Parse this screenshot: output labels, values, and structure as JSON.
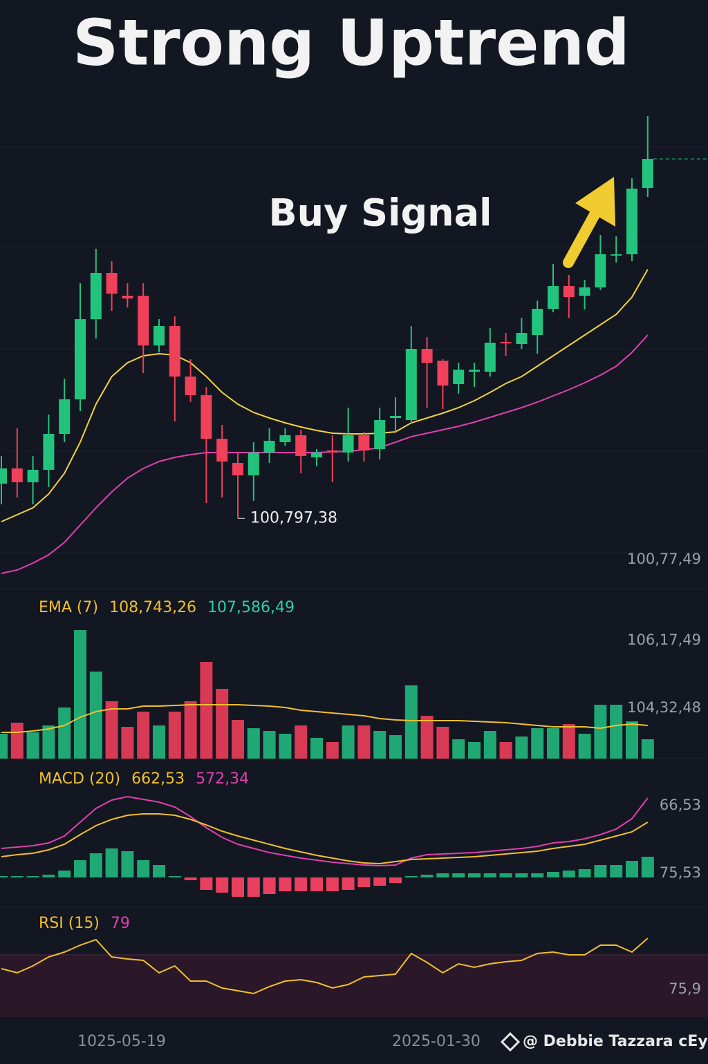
{
  "title": "Strong Uptrend",
  "annotation": "Buy Signal",
  "credit": "@ Debbie Tazzara cEyu",
  "dates": [
    "1025-05-19",
    "2025-01-30"
  ],
  "right_labels": [
    "100,77,49",
    "106,17,49",
    "104,32,48",
    "66,53",
    "75,53",
    "75,9"
  ],
  "chart_data": [
    {
      "type": "candlestick",
      "ylim": [
        100000,
        107000
      ],
      "up_color": "#22c47d",
      "down_color": "#f0405a",
      "grid_lines": [
        106180,
        104720,
        103240,
        101780,
        100300
      ],
      "low_label": "100,797,38",
      "open": [
        101300,
        101520,
        101320,
        101500,
        102020,
        102520,
        103680,
        104350,
        104020,
        104020,
        103300,
        103580,
        102850,
        102580,
        101950,
        101600,
        101420,
        101750,
        101900,
        102000,
        101680,
        101780,
        101750,
        102000,
        101800,
        102250,
        102220,
        103250,
        103080,
        102740,
        102920,
        102920,
        103350,
        103320,
        103450,
        103830,
        104160,
        104020,
        104140,
        104600,
        104620,
        105580
      ],
      "close": [
        101520,
        101320,
        101500,
        102020,
        102520,
        103680,
        104350,
        104050,
        103980,
        103300,
        103580,
        102850,
        102580,
        101950,
        101620,
        101420,
        101750,
        101920,
        102000,
        101700,
        101750,
        101750,
        102000,
        101780,
        102220,
        102280,
        103250,
        103050,
        102720,
        102950,
        102950,
        103340,
        103330,
        103480,
        103830,
        104160,
        104000,
        104140,
        104620,
        104620,
        105570,
        106000
      ],
      "high": [
        101700,
        102100,
        101700,
        102300,
        102820,
        104200,
        104700,
        104520,
        104200,
        104200,
        103680,
        103720,
        103100,
        102700,
        102150,
        101750,
        101900,
        102100,
        102100,
        102080,
        101800,
        102000,
        102400,
        102050,
        102400,
        102550,
        103580,
        103420,
        103100,
        103050,
        103050,
        103550,
        103480,
        103700,
        103950,
        104480,
        104320,
        104250,
        104900,
        104880,
        105720,
        106620
      ],
      "low": [
        101000,
        101100,
        101000,
        101250,
        101900,
        102350,
        103400,
        103800,
        103850,
        102900,
        103200,
        102200,
        102480,
        101020,
        101100,
        100797.38,
        101050,
        101600,
        101850,
        101450,
        101550,
        101320,
        101620,
        101620,
        101650,
        102050,
        102180,
        102400,
        102380,
        102600,
        102700,
        102850,
        103150,
        103250,
        103180,
        103780,
        103700,
        103820,
        104100,
        104500,
        104520,
        105450
      ],
      "series": [
        {
          "color": "#f2d43c",
          "values": [
            100750,
            100850,
            100950,
            101150,
            101450,
            101900,
            102450,
            102850,
            103050,
            103150,
            103180,
            103160,
            103050,
            102850,
            102620,
            102450,
            102330,
            102250,
            102180,
            102120,
            102070,
            102030,
            102020,
            102020,
            102030,
            102050,
            102180,
            102250,
            102320,
            102400,
            102500,
            102620,
            102750,
            102850,
            103000,
            103150,
            103300,
            103450,
            103600,
            103750,
            104000,
            104400
          ]
        },
        {
          "color": "#e040b0",
          "values": [
            100000,
            100050,
            100150,
            100270,
            100450,
            100700,
            100950,
            101180,
            101380,
            101520,
            101620,
            101680,
            101720,
            101750,
            101750,
            101750,
            101750,
            101750,
            101750,
            101750,
            101750,
            101760,
            101770,
            101790,
            101820,
            101900,
            101980,
            102030,
            102080,
            102130,
            102190,
            102260,
            102330,
            102400,
            102480,
            102570,
            102660,
            102760,
            102870,
            103000,
            103200,
            103450
          ]
        }
      ]
    },
    {
      "type": "bar",
      "ylim": [
        0,
        200
      ],
      "header": [
        "EMA (7)",
        "108,743,26",
        "107,586,49"
      ],
      "values": [
        36,
        52,
        38,
        48,
        74,
        186,
        126,
        83,
        46,
        68,
        48,
        68,
        83,
        140,
        101,
        56,
        44,
        40,
        36,
        48,
        30,
        24,
        48,
        48,
        40,
        34,
        106,
        62,
        46,
        28,
        24,
        40,
        24,
        32,
        44,
        44,
        50,
        36,
        78,
        78,
        54,
        28
      ],
      "colors": [
        "#1fa873",
        "#d83a55",
        "#1fa873",
        "#1fa873",
        "#1fa873",
        "#1fa873",
        "#1fa873",
        "#d83a55",
        "#d83a55",
        "#d83a55",
        "#1fa873",
        "#d83a55",
        "#d83a55",
        "#d83a55",
        "#d83a55",
        "#d83a55",
        "#1fa873",
        "#1fa873",
        "#1fa873",
        "#d83a55",
        "#1fa873",
        "#d83a55",
        "#1fa873",
        "#d83a55",
        "#1fa873",
        "#1fa873",
        "#1fa873",
        "#d83a55",
        "#d83a55",
        "#1fa873",
        "#1fa873",
        "#1fa873",
        "#d83a55",
        "#1fa873",
        "#1fa873",
        "#1fa873",
        "#d83a55",
        "#1fa873",
        "#1fa873",
        "#1fa873",
        "#1fa873",
        "#1fa873"
      ],
      "series": [
        {
          "color": "#f2c02c",
          "values": [
            38,
            38,
            40,
            43,
            48,
            60,
            68,
            72,
            72,
            76,
            76,
            77,
            78,
            78,
            78,
            78,
            77,
            76,
            74,
            70,
            68,
            66,
            64,
            62,
            58,
            56,
            55,
            55,
            55,
            55,
            54,
            53,
            52,
            50,
            48,
            46,
            46,
            46,
            44,
            48,
            50,
            48
          ]
        }
      ]
    },
    {
      "type": "macd",
      "ylim": [
        -40,
        130
      ],
      "header": [
        "MACD (20)",
        "662,53",
        "572,34"
      ],
      "up_color": "#1fa873",
      "down_color": "#e8405e",
      "values": [
        2,
        2,
        2,
        4,
        10,
        25,
        35,
        42,
        38,
        25,
        18,
        2,
        -4,
        -18,
        -22,
        -28,
        -28,
        -24,
        -20,
        -20,
        -20,
        -20,
        -18,
        -14,
        -12,
        -8,
        2,
        4,
        6,
        6,
        6,
        6,
        6,
        6,
        6,
        8,
        10,
        12,
        18,
        18,
        24,
        30
      ],
      "series": [
        {
          "color": "#e040b0",
          "values": [
            42,
            44,
            46,
            50,
            60,
            80,
            100,
            112,
            117,
            113,
            109,
            102,
            88,
            72,
            58,
            48,
            42,
            36,
            32,
            28,
            25,
            22,
            20,
            18,
            17,
            18,
            28,
            33,
            34,
            35,
            36,
            38,
            40,
            42,
            45,
            50,
            52,
            56,
            62,
            70,
            85,
            115
          ]
        },
        {
          "color": "#f2c02c",
          "values": [
            30,
            33,
            35,
            40,
            48,
            62,
            75,
            84,
            90,
            92,
            92,
            90,
            84,
            76,
            67,
            60,
            54,
            48,
            42,
            37,
            32,
            28,
            24,
            21,
            20,
            23,
            26,
            27,
            28,
            29,
            30,
            32,
            34,
            36,
            38,
            42,
            45,
            48,
            54,
            60,
            66,
            80
          ]
        }
      ]
    },
    {
      "type": "rsi",
      "ylim": [
        0,
        150
      ],
      "band": [
        0,
        90
      ],
      "band_color": "#2a1829",
      "header": [
        "RSI (15)",
        "79"
      ],
      "series": [
        {
          "color": "#f2c02c",
          "values": [
            70,
            64,
            74,
            87,
            94,
            104,
            112,
            87,
            84,
            82,
            64,
            74,
            52,
            52,
            42,
            38,
            34,
            44,
            52,
            54,
            50,
            42,
            47,
            58,
            60,
            62,
            92,
            79,
            64,
            77,
            72,
            77,
            80,
            82,
            92,
            94,
            90,
            90,
            104,
            104,
            94,
            114
          ]
        }
      ]
    }
  ]
}
